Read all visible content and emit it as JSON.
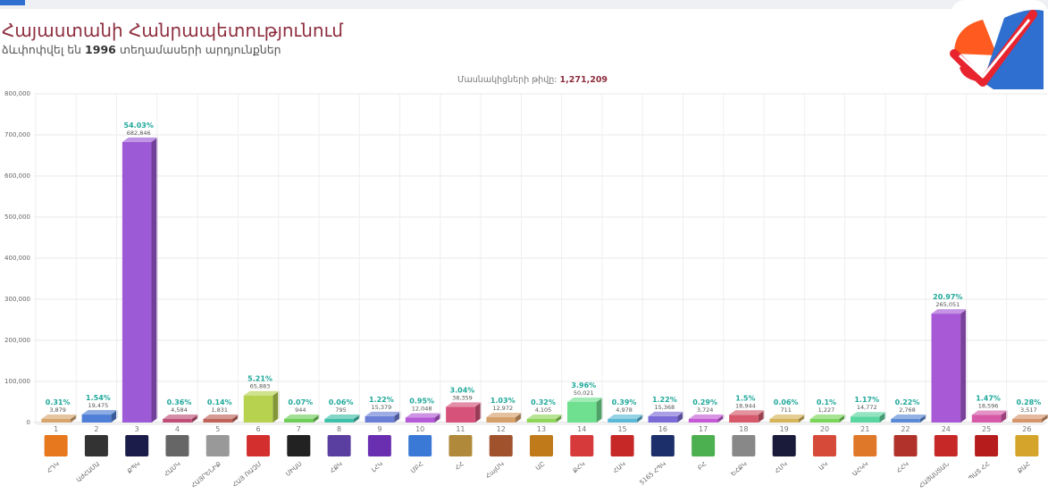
{
  "header": {
    "title": "Հայաստանի Հանրապետությունում",
    "subtitle_pre": "ձևփոփվել են",
    "subtitle_count": "1996",
    "subtitle_post": "տեղամասերի արդյունքներ",
    "voters_label": "Մասնակիցների թիվը:",
    "voters_value": "1,271,209"
  },
  "logo": {
    "icon": "checkmark-logo-icon",
    "colors": [
      "#ff5a1f",
      "#e8252f",
      "#2f6fcf"
    ]
  },
  "chart_data": {
    "type": "bar",
    "y_ticks": [
      "0",
      "100,000",
      "200,000",
      "300,000",
      "400,000",
      "500,000",
      "600,000",
      "700,000",
      "800,000"
    ],
    "ylim": [
      0,
      800000
    ],
    "grid": true,
    "bars": [
      {
        "num": "1",
        "label": "ՀԴԿ",
        "value": 3879,
        "value_label": "3,879",
        "pct": "0.31%",
        "color": "#d9a56e",
        "logo": "#e8781e"
      },
      {
        "num": "2",
        "label": "ԱժՀԱՄԱ",
        "value": 19475,
        "value_label": "19,475",
        "pct": "1.54%",
        "color": "#4f7fd6",
        "logo": "#333333"
      },
      {
        "num": "3",
        "label": "ՔՊԿ",
        "value": 682846,
        "value_label": "682,846",
        "pct": "54.03%",
        "color": "#9d5ad6",
        "logo": "#1c1c4a"
      },
      {
        "num": "4",
        "label": "ՀԱՄԿ",
        "value": 4584,
        "value_label": "4,584",
        "pct": "0.36%",
        "color": "#c04f78",
        "logo": "#666666"
      },
      {
        "num": "5",
        "label": "ՀԱՅՐԵՆԻՔ",
        "value": 1831,
        "value_label": "1,831",
        "pct": "0.14%",
        "color": "#c0645a",
        "logo": "#999999"
      },
      {
        "num": "6",
        "label": "ՀԱՅ ՌԱԶՄ",
        "value": 65883,
        "value_label": "65,883",
        "pct": "5.21%",
        "color": "#b7d24e",
        "logo": "#d32f2f"
      },
      {
        "num": "7",
        "label": "ՄԻԱՍ",
        "value": 944,
        "value_label": "944",
        "pct": "0.07%",
        "color": "#6fcf5a",
        "logo": "#222222"
      },
      {
        "num": "8",
        "label": "ՀՔԿ",
        "value": 795,
        "value_label": "795",
        "pct": "0.06%",
        "color": "#3fc0a8",
        "logo": "#5b3fa0"
      },
      {
        "num": "9",
        "label": "ԼՀԿ",
        "value": 15379,
        "value_label": "15,379",
        "pct": "1.22%",
        "color": "#6b7fd6",
        "logo": "#6a2fb0"
      },
      {
        "num": "10",
        "label": "ՄԲՀ",
        "value": 12048,
        "value_label": "12,048",
        "pct": "0.95%",
        "color": "#b45ad6",
        "logo": "#3a7ad6"
      },
      {
        "num": "11",
        "label": "ՀՀ",
        "value": 38359,
        "value_label": "38,359",
        "pct": "3.04%",
        "color": "#d6527a",
        "logo": "#b08a3a"
      },
      {
        "num": "12",
        "label": "ՀայՄԿ",
        "value": 12972,
        "value_label": "12,972",
        "pct": "1.03%",
        "color": "#d6a06b",
        "logo": "#a0522d"
      },
      {
        "num": "13",
        "label": "ԱԸ",
        "value": 4105,
        "value_label": "4,105",
        "pct": "0.32%",
        "color": "#8fd65a",
        "logo": "#c07a1a"
      },
      {
        "num": "14",
        "label": "ՔՀԿ",
        "value": 50021,
        "value_label": "50,021",
        "pct": "3.96%",
        "color": "#6fe08f",
        "logo": "#d63a3a"
      },
      {
        "num": "15",
        "label": "ՀԱԿ",
        "value": 4978,
        "value_label": "4,978",
        "pct": "0.39%",
        "color": "#5ab9d6",
        "logo": "#c62828"
      },
      {
        "num": "16",
        "label": "5165 ՀՊԿ",
        "value": 15368,
        "value_label": "15,368",
        "pct": "1.22%",
        "color": "#7a6bd6",
        "logo": "#1c2f6a"
      },
      {
        "num": "17",
        "label": "ԲՀ",
        "value": 3724,
        "value_label": "3,724",
        "pct": "0.29%",
        "color": "#c55ad6",
        "logo": "#4caf50"
      },
      {
        "num": "18",
        "label": "ԵՀՔԿ",
        "value": 18944,
        "value_label": "18,944",
        "pct": "1.5%",
        "color": "#d65a6b",
        "logo": "#888888"
      },
      {
        "num": "19",
        "label": "ՀՄԿ",
        "value": 711,
        "value_label": "711",
        "pct": "0.06%",
        "color": "#d6b45a",
        "logo": "#1a1a3a"
      },
      {
        "num": "20",
        "label": "ԱԿ",
        "value": 1227,
        "value_label": "1,227",
        "pct": "0.1%",
        "color": "#7ad65a",
        "logo": "#d64a3a"
      },
      {
        "num": "21",
        "label": "ԱՀԿԿ",
        "value": 14772,
        "value_label": "14,772",
        "pct": "1.17%",
        "color": "#5ad6a0",
        "logo": "#e0782a"
      },
      {
        "num": "22",
        "label": "ՀՀԿ",
        "value": 2768,
        "value_label": "2,768",
        "pct": "0.22%",
        "color": "#5a8ad6",
        "logo": "#b0322a"
      },
      {
        "num": "24",
        "label": "ՀԱՅԱՍՏԱՆ",
        "value": 265051,
        "value_label": "265,051",
        "pct": "20.97%",
        "color": "#a85ad6",
        "logo": "#c62828"
      },
      {
        "num": "25",
        "label": "ՊԱՏ ՀՀ",
        "value": 18596,
        "value_label": "18,596",
        "pct": "1.47%",
        "color": "#d65aa8",
        "logo": "#b71c1c"
      },
      {
        "num": "26",
        "label": "ՔԱՀ",
        "value": 3517,
        "value_label": "3,517",
        "pct": "0.28%",
        "color": "#d6966b",
        "logo": "#d4a52a"
      }
    ]
  }
}
